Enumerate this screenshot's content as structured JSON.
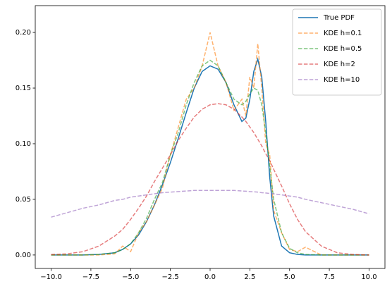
{
  "chart_data": {
    "type": "line",
    "x": [
      -10,
      -9,
      -8,
      -7,
      -6,
      -5.5,
      -5,
      -4.5,
      -4,
      -3.5,
      -3,
      -2.5,
      -2,
      -1.5,
      -1,
      -0.5,
      0,
      0.5,
      1,
      1.5,
      2,
      2.25,
      2.5,
      2.75,
      3,
      3.25,
      3.5,
      3.75,
      4,
      4.5,
      5,
      5.5,
      6,
      7,
      8,
      9,
      10
    ],
    "series": [
      {
        "name": "True PDF",
        "color": "#1f77b4",
        "linestyle": "solid",
        "alpha": 1,
        "values": [
          0,
          0,
          0,
          0.0005,
          0.002,
          0.005,
          0.01,
          0.018,
          0.03,
          0.045,
          0.063,
          0.083,
          0.105,
          0.128,
          0.15,
          0.165,
          0.17,
          0.167,
          0.155,
          0.135,
          0.12,
          0.123,
          0.14,
          0.165,
          0.176,
          0.16,
          0.12,
          0.07,
          0.035,
          0.008,
          0.002,
          0.0005,
          0,
          0,
          0,
          0,
          0
        ]
      },
      {
        "name": "KDE h=0.1",
        "color": "#ff7f0e",
        "linestyle": "dashed",
        "alpha": 0.6,
        "values": [
          0,
          0,
          0,
          0,
          0.001,
          0.008,
          0.003,
          0.02,
          0.03,
          0.045,
          0.06,
          0.09,
          0.115,
          0.14,
          0.15,
          0.17,
          0.2,
          0.17,
          0.155,
          0.13,
          0.14,
          0.125,
          0.16,
          0.15,
          0.19,
          0.15,
          0.1,
          0.09,
          0.04,
          0.02,
          0.005,
          0.003,
          0.007,
          0,
          0,
          0,
          0
        ]
      },
      {
        "name": "KDE h=0.5",
        "color": "#2ca02c",
        "linestyle": "dashed",
        "alpha": 0.6,
        "values": [
          0,
          0,
          0,
          0.0005,
          0.002,
          0.005,
          0.01,
          0.02,
          0.033,
          0.05,
          0.065,
          0.09,
          0.11,
          0.135,
          0.155,
          0.17,
          0.175,
          0.17,
          0.155,
          0.14,
          0.135,
          0.138,
          0.145,
          0.15,
          0.148,
          0.135,
          0.11,
          0.08,
          0.05,
          0.02,
          0.006,
          0.002,
          0.0005,
          0,
          0,
          0,
          0
        ]
      },
      {
        "name": "KDE h=2",
        "color": "#d62728",
        "linestyle": "dashed",
        "alpha": 0.6,
        "values": [
          0.0005,
          0.001,
          0.003,
          0.008,
          0.017,
          0.023,
          0.032,
          0.042,
          0.053,
          0.066,
          0.078,
          0.09,
          0.103,
          0.114,
          0.124,
          0.131,
          0.135,
          0.136,
          0.135,
          0.131,
          0.124,
          0.12,
          0.115,
          0.11,
          0.104,
          0.098,
          0.091,
          0.085,
          0.077,
          0.062,
          0.046,
          0.032,
          0.021,
          0.008,
          0.002,
          0.0005,
          0
        ]
      },
      {
        "name": "KDE h=10",
        "color": "#9467bd",
        "linestyle": "dashed",
        "alpha": 0.6,
        "values": [
          0.034,
          0.038,
          0.042,
          0.045,
          0.049,
          0.05,
          0.052,
          0.053,
          0.054,
          0.055,
          0.056,
          0.0565,
          0.057,
          0.0575,
          0.058,
          0.058,
          0.058,
          0.058,
          0.058,
          0.058,
          0.0575,
          0.0573,
          0.057,
          0.0568,
          0.0565,
          0.056,
          0.0557,
          0.0553,
          0.055,
          0.054,
          0.053,
          0.052,
          0.05,
          0.047,
          0.044,
          0.041,
          0.037
        ]
      }
    ],
    "xlim": [
      -11,
      11
    ],
    "ylim": [
      -0.0121,
      0.2241
    ],
    "xticks": [
      {
        "value": -10,
        "label": "−10.0"
      },
      {
        "value": -7.5,
        "label": "−7.5"
      },
      {
        "value": -5,
        "label": "−5.0"
      },
      {
        "value": -2.5,
        "label": "−2.5"
      },
      {
        "value": 0,
        "label": "0.0"
      },
      {
        "value": 2.5,
        "label": "2.5"
      },
      {
        "value": 5,
        "label": "5.0"
      },
      {
        "value": 7.5,
        "label": "7.5"
      },
      {
        "value": 10,
        "label": "10.0"
      }
    ],
    "yticks": [
      {
        "value": 0,
        "label": "0.00"
      },
      {
        "value": 0.05,
        "label": "0.05"
      },
      {
        "value": 0.1,
        "label": "0.10"
      },
      {
        "value": 0.15,
        "label": "0.15"
      },
      {
        "value": 0.2,
        "label": "0.20"
      }
    ],
    "grid": false,
    "legend": "upper right"
  }
}
